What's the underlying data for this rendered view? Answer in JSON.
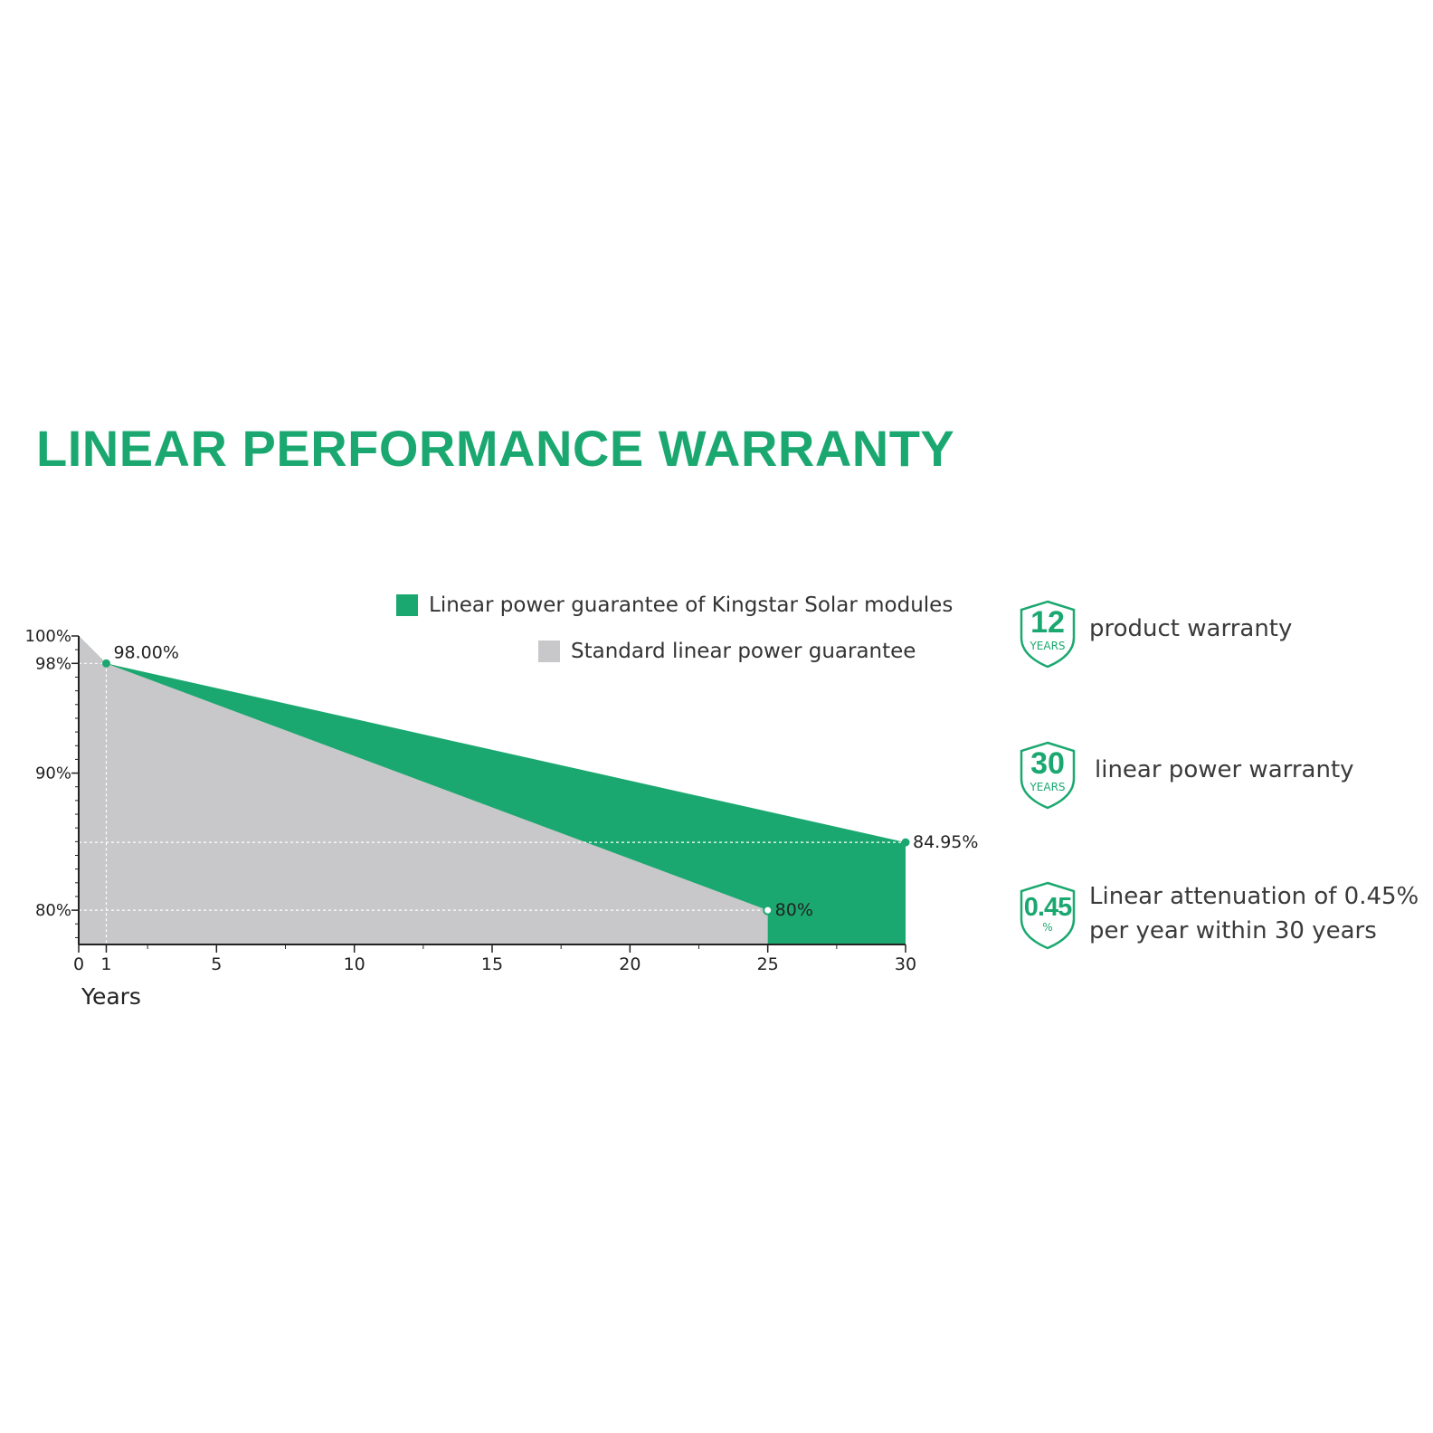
{
  "title": "LINEAR PERFORMANCE WARRANTY",
  "colors": {
    "accent": "#1ba870",
    "standard": "#c8c8ca",
    "axis": "#222222",
    "guide": "#ffffff"
  },
  "legend": [
    {
      "label": "Linear power guarantee of Kingstar Solar modules",
      "color": "#1ba870"
    },
    {
      "label": "Standard linear power guarantee",
      "color": "#c8c8ca"
    }
  ],
  "chart_data": {
    "type": "area",
    "xlabel": "Years",
    "ylabel": "",
    "xlim": [
      0,
      30
    ],
    "ylim": [
      77.5,
      100
    ],
    "x_ticks": [
      0,
      1,
      5,
      10,
      15,
      20,
      25,
      30
    ],
    "y_ticks": [
      {
        "value": 100,
        "label": "100%"
      },
      {
        "value": 98,
        "label": "98%"
      },
      {
        "value": 90,
        "label": "90%"
      },
      {
        "value": 80,
        "label": "80%"
      }
    ],
    "series": [
      {
        "name": "Linear power guarantee of Kingstar Solar modules",
        "color": "#1ba870",
        "points": [
          [
            0,
            100
          ],
          [
            1,
            98
          ],
          [
            30,
            84.95
          ]
        ]
      },
      {
        "name": "Standard linear power guarantee",
        "color": "#c8c8ca",
        "points": [
          [
            0,
            100
          ],
          [
            1,
            98
          ],
          [
            25,
            80
          ]
        ]
      }
    ],
    "annotations": [
      {
        "x": 1,
        "y": 98,
        "label": "98.00%"
      },
      {
        "x": 25,
        "y": 80,
        "label": "80%"
      },
      {
        "x": 30,
        "y": 84.95,
        "label": "84.95%"
      }
    ],
    "grid": false,
    "legend_position": "top-right"
  },
  "features": [
    {
      "icon": "shield-icon",
      "number": "12",
      "sub": "YEARS",
      "text": [
        "product warranty"
      ]
    },
    {
      "icon": "shield-icon",
      "number": "30",
      "sub": "YEARS",
      "text": [
        "linear power warranty"
      ]
    },
    {
      "icon": "shield-icon",
      "number": "0.45",
      "sub": "%",
      "text": [
        "Linear attenuation of 0.45%",
        "per year within 30 years"
      ]
    }
  ]
}
